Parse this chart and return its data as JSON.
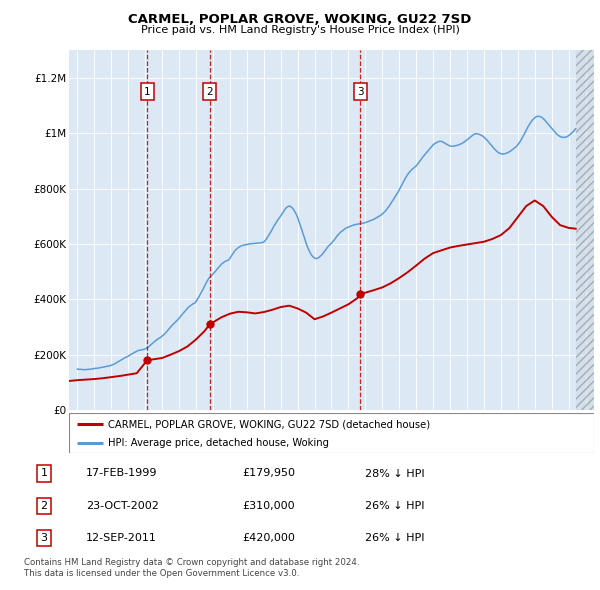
{
  "title": "CARMEL, POPLAR GROVE, WOKING, GU22 7SD",
  "subtitle": "Price paid vs. HM Land Registry's House Price Index (HPI)",
  "ylim": [
    0,
    1300000
  ],
  "xlim": [
    1994.5,
    2025.5
  ],
  "yticks": [
    0,
    200000,
    400000,
    600000,
    800000,
    1000000,
    1200000
  ],
  "ytick_labels": [
    "£0",
    "£200K",
    "£400K",
    "£600K",
    "£800K",
    "£1M",
    "£1.2M"
  ],
  "xticks": [
    1995,
    1996,
    1997,
    1998,
    1999,
    2000,
    2001,
    2002,
    2003,
    2004,
    2005,
    2006,
    2007,
    2008,
    2009,
    2010,
    2011,
    2012,
    2013,
    2014,
    2015,
    2016,
    2017,
    2018,
    2019,
    2020,
    2021,
    2022,
    2023,
    2024,
    2025
  ],
  "plot_bg_color": "#dce9f5",
  "legend_label_red": "CARMEL, POPLAR GROVE, WOKING, GU22 7SD (detached house)",
  "legend_label_blue": "HPI: Average price, detached house, Woking",
  "footer": "Contains HM Land Registry data © Crown copyright and database right 2024.\nThis data is licensed under the Open Government Licence v3.0.",
  "sale_points": [
    {
      "num": 1,
      "year": 1999.12,
      "price": 179950,
      "date": "17-FEB-1999",
      "pct": "28% ↓ HPI"
    },
    {
      "num": 2,
      "year": 2002.81,
      "price": 310000,
      "date": "23-OCT-2002",
      "pct": "26% ↓ HPI"
    },
    {
      "num": 3,
      "year": 2011.71,
      "price": 420000,
      "date": "12-SEP-2011",
      "pct": "26% ↓ HPI"
    }
  ],
  "hpi_years": [
    1995.0,
    1995.08,
    1995.17,
    1995.25,
    1995.33,
    1995.42,
    1995.5,
    1995.58,
    1995.67,
    1995.75,
    1995.83,
    1995.92,
    1996.0,
    1996.08,
    1996.17,
    1996.25,
    1996.33,
    1996.42,
    1996.5,
    1996.58,
    1996.67,
    1996.75,
    1996.83,
    1996.92,
    1997.0,
    1997.08,
    1997.17,
    1997.25,
    1997.33,
    1997.42,
    1997.5,
    1997.58,
    1997.67,
    1997.75,
    1997.83,
    1997.92,
    1998.0,
    1998.08,
    1998.17,
    1998.25,
    1998.33,
    1998.42,
    1998.5,
    1998.58,
    1998.67,
    1998.75,
    1998.83,
    1998.92,
    1999.0,
    1999.08,
    1999.17,
    1999.25,
    1999.33,
    1999.42,
    1999.5,
    1999.58,
    1999.67,
    1999.75,
    1999.83,
    1999.92,
    2000.0,
    2000.08,
    2000.17,
    2000.25,
    2000.33,
    2000.42,
    2000.5,
    2000.58,
    2000.67,
    2000.75,
    2000.83,
    2000.92,
    2001.0,
    2001.08,
    2001.17,
    2001.25,
    2001.33,
    2001.42,
    2001.5,
    2001.58,
    2001.67,
    2001.75,
    2001.83,
    2001.92,
    2002.0,
    2002.08,
    2002.17,
    2002.25,
    2002.33,
    2002.42,
    2002.5,
    2002.58,
    2002.67,
    2002.75,
    2002.83,
    2002.92,
    2003.0,
    2003.08,
    2003.17,
    2003.25,
    2003.33,
    2003.42,
    2003.5,
    2003.58,
    2003.67,
    2003.75,
    2003.83,
    2003.92,
    2004.0,
    2004.08,
    2004.17,
    2004.25,
    2004.33,
    2004.42,
    2004.5,
    2004.58,
    2004.67,
    2004.75,
    2004.83,
    2004.92,
    2005.0,
    2005.08,
    2005.17,
    2005.25,
    2005.33,
    2005.42,
    2005.5,
    2005.58,
    2005.67,
    2005.75,
    2005.83,
    2005.92,
    2006.0,
    2006.08,
    2006.17,
    2006.25,
    2006.33,
    2006.42,
    2006.5,
    2006.58,
    2006.67,
    2006.75,
    2006.83,
    2006.92,
    2007.0,
    2007.08,
    2007.17,
    2007.25,
    2007.33,
    2007.42,
    2007.5,
    2007.58,
    2007.67,
    2007.75,
    2007.83,
    2007.92,
    2008.0,
    2008.08,
    2008.17,
    2008.25,
    2008.33,
    2008.42,
    2008.5,
    2008.58,
    2008.67,
    2008.75,
    2008.83,
    2008.92,
    2009.0,
    2009.08,
    2009.17,
    2009.25,
    2009.33,
    2009.42,
    2009.5,
    2009.58,
    2009.67,
    2009.75,
    2009.83,
    2009.92,
    2010.0,
    2010.08,
    2010.17,
    2010.25,
    2010.33,
    2010.42,
    2010.5,
    2010.58,
    2010.67,
    2010.75,
    2010.83,
    2010.92,
    2011.0,
    2011.08,
    2011.17,
    2011.25,
    2011.33,
    2011.42,
    2011.5,
    2011.58,
    2011.67,
    2011.75,
    2011.83,
    2011.92,
    2012.0,
    2012.08,
    2012.17,
    2012.25,
    2012.33,
    2012.42,
    2012.5,
    2012.58,
    2012.67,
    2012.75,
    2012.83,
    2012.92,
    2013.0,
    2013.08,
    2013.17,
    2013.25,
    2013.33,
    2013.42,
    2013.5,
    2013.58,
    2013.67,
    2013.75,
    2013.83,
    2013.92,
    2014.0,
    2014.08,
    2014.17,
    2014.25,
    2014.33,
    2014.42,
    2014.5,
    2014.58,
    2014.67,
    2014.75,
    2014.83,
    2014.92,
    2015.0,
    2015.08,
    2015.17,
    2015.25,
    2015.33,
    2015.42,
    2015.5,
    2015.58,
    2015.67,
    2015.75,
    2015.83,
    2015.92,
    2016.0,
    2016.08,
    2016.17,
    2016.25,
    2016.33,
    2016.42,
    2016.5,
    2016.58,
    2016.67,
    2016.75,
    2016.83,
    2016.92,
    2017.0,
    2017.08,
    2017.17,
    2017.25,
    2017.33,
    2017.42,
    2017.5,
    2017.58,
    2017.67,
    2017.75,
    2017.83,
    2017.92,
    2018.0,
    2018.08,
    2018.17,
    2018.25,
    2018.33,
    2018.42,
    2018.5,
    2018.58,
    2018.67,
    2018.75,
    2018.83,
    2018.92,
    2019.0,
    2019.08,
    2019.17,
    2019.25,
    2019.33,
    2019.42,
    2019.5,
    2019.58,
    2019.67,
    2019.75,
    2019.83,
    2019.92,
    2020.0,
    2020.08,
    2020.17,
    2020.25,
    2020.33,
    2020.42,
    2020.5,
    2020.58,
    2020.67,
    2020.75,
    2020.83,
    2020.92,
    2021.0,
    2021.08,
    2021.17,
    2021.25,
    2021.33,
    2021.42,
    2021.5,
    2021.58,
    2021.67,
    2021.75,
    2021.83,
    2021.92,
    2022.0,
    2022.08,
    2022.17,
    2022.25,
    2022.33,
    2022.42,
    2022.5,
    2022.58,
    2022.67,
    2022.75,
    2022.83,
    2022.92,
    2023.0,
    2023.08,
    2023.17,
    2023.25,
    2023.33,
    2023.42,
    2023.5,
    2023.58,
    2023.67,
    2023.75,
    2023.83,
    2023.92,
    2024.0,
    2024.08,
    2024.17,
    2024.25,
    2024.33,
    2024.42
  ],
  "hpi_values": [
    148000,
    147000,
    147000,
    147000,
    146000,
    146000,
    146000,
    147000,
    147000,
    148000,
    148000,
    149000,
    150000,
    151000,
    151000,
    152000,
    153000,
    154000,
    155000,
    156000,
    157000,
    158000,
    159000,
    160000,
    162000,
    164000,
    166000,
    169000,
    172000,
    175000,
    178000,
    181000,
    184000,
    187000,
    190000,
    192000,
    195000,
    198000,
    201000,
    204000,
    207000,
    210000,
    212000,
    215000,
    216000,
    217000,
    218000,
    219000,
    221000,
    224000,
    227000,
    231000,
    236000,
    240000,
    245000,
    249000,
    253000,
    257000,
    260000,
    263000,
    267000,
    271000,
    276000,
    282000,
    288000,
    294000,
    300000,
    306000,
    311000,
    316000,
    321000,
    326000,
    332000,
    338000,
    344000,
    350000,
    356000,
    362000,
    367000,
    373000,
    377000,
    381000,
    384000,
    386000,
    392000,
    400000,
    409000,
    418000,
    427000,
    437000,
    447000,
    457000,
    467000,
    475000,
    481000,
    486000,
    491000,
    497000,
    503000,
    509000,
    515000,
    521000,
    527000,
    531000,
    535000,
    538000,
    540000,
    542000,
    548000,
    556000,
    564000,
    572000,
    578000,
    583000,
    587000,
    590000,
    593000,
    595000,
    596000,
    597000,
    598000,
    599000,
    600000,
    601000,
    601000,
    602000,
    602000,
    603000,
    603000,
    604000,
    604000,
    605000,
    607000,
    612000,
    619000,
    627000,
    635000,
    644000,
    653000,
    662000,
    671000,
    679000,
    687000,
    694000,
    701000,
    709000,
    717000,
    725000,
    731000,
    735000,
    737000,
    735000,
    731000,
    725000,
    717000,
    707000,
    695000,
    681000,
    666000,
    651000,
    635000,
    619000,
    603000,
    589000,
    577000,
    567000,
    559000,
    553000,
    549000,
    547000,
    548000,
    551000,
    555000,
    560000,
    566000,
    573000,
    580000,
    587000,
    593000,
    598000,
    603000,
    609000,
    615000,
    622000,
    629000,
    635000,
    640000,
    645000,
    649000,
    653000,
    656000,
    659000,
    661000,
    663000,
    665000,
    667000,
    669000,
    670000,
    671000,
    672000,
    673000,
    674000,
    675000,
    676000,
    677000,
    679000,
    681000,
    683000,
    685000,
    687000,
    689000,
    692000,
    695000,
    698000,
    701000,
    704000,
    708000,
    713000,
    718000,
    724000,
    731000,
    738000,
    746000,
    754000,
    762000,
    770000,
    778000,
    786000,
    795000,
    805000,
    815000,
    825000,
    834000,
    843000,
    851000,
    858000,
    864000,
    869000,
    873000,
    877000,
    882000,
    888000,
    895000,
    902000,
    909000,
    916000,
    922000,
    928000,
    934000,
    940000,
    946000,
    952000,
    958000,
    962000,
    965000,
    968000,
    970000,
    971000,
    970000,
    968000,
    965000,
    962000,
    959000,
    956000,
    954000,
    953000,
    953000,
    954000,
    955000,
    956000,
    958000,
    960000,
    962000,
    965000,
    968000,
    972000,
    976000,
    980000,
    984000,
    988000,
    992000,
    996000,
    998000,
    998000,
    997000,
    995000,
    993000,
    990000,
    986000,
    981000,
    976000,
    970000,
    964000,
    958000,
    952000,
    946000,
    940000,
    935000,
    931000,
    928000,
    926000,
    925000,
    925000,
    926000,
    928000,
    930000,
    933000,
    936000,
    940000,
    944000,
    948000,
    952000,
    958000,
    965000,
    973000,
    982000,
    991000,
    1001000,
    1011000,
    1021000,
    1030000,
    1038000,
    1045000,
    1051000,
    1056000,
    1059000,
    1061000,
    1061000,
    1060000,
    1057000,
    1053000,
    1048000,
    1042000,
    1036000,
    1030000,
    1024000,
    1018000,
    1012000,
    1006000,
    1000000,
    995000,
    991000,
    988000,
    986000,
    985000,
    985000,
    986000,
    988000,
    991000,
    995000,
    999000,
    1004000,
    1010000,
    1016000
  ],
  "red_years": [
    1994.5,
    1995.0,
    1995.5,
    1996.0,
    1996.5,
    1997.0,
    1997.5,
    1998.0,
    1998.5,
    1999.12,
    2000.0,
    2000.5,
    2001.0,
    2001.5,
    2002.0,
    2002.5,
    2002.81,
    2003.5,
    2004.0,
    2004.5,
    2005.0,
    2005.5,
    2006.0,
    2006.5,
    2007.0,
    2007.5,
    2008.0,
    2008.5,
    2009.0,
    2009.5,
    2010.0,
    2010.5,
    2011.0,
    2011.5,
    2011.71,
    2012.0,
    2012.5,
    2013.0,
    2013.5,
    2014.0,
    2014.5,
    2015.0,
    2015.5,
    2016.0,
    2016.5,
    2017.0,
    2017.5,
    2018.0,
    2018.5,
    2019.0,
    2019.5,
    2020.0,
    2020.5,
    2021.0,
    2021.5,
    2022.0,
    2022.5,
    2023.0,
    2023.5,
    2024.0,
    2024.42
  ],
  "red_values": [
    105000,
    108000,
    110000,
    112000,
    115000,
    119000,
    123000,
    128000,
    133000,
    179950,
    188000,
    200000,
    213000,
    230000,
    255000,
    285000,
    310000,
    335000,
    348000,
    355000,
    353000,
    349000,
    354000,
    362000,
    372000,
    377000,
    367000,
    352000,
    328000,
    338000,
    352000,
    367000,
    382000,
    403000,
    420000,
    424000,
    433000,
    443000,
    458000,
    477000,
    498000,
    522000,
    547000,
    567000,
    577000,
    587000,
    593000,
    598000,
    603000,
    608000,
    618000,
    632000,
    657000,
    697000,
    737000,
    757000,
    737000,
    698000,
    668000,
    658000,
    655000
  ]
}
